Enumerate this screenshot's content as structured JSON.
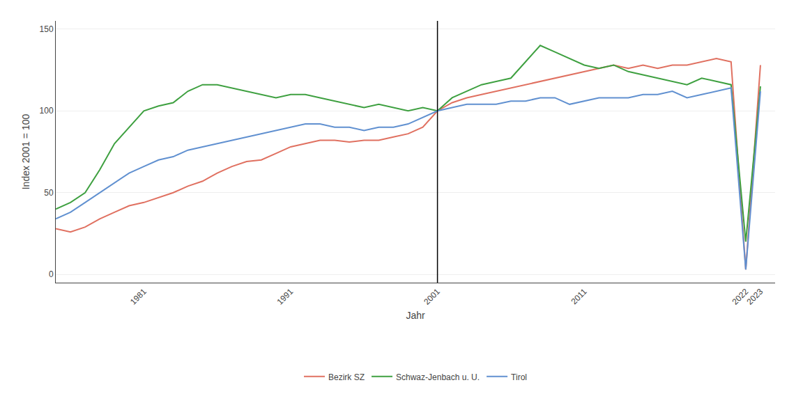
{
  "chart_data": {
    "type": "line",
    "xlabel": "Jahr",
    "ylabel": "Index 2001 = 100",
    "x": [
      1975,
      1976,
      1977,
      1978,
      1979,
      1980,
      1981,
      1982,
      1983,
      1984,
      1985,
      1986,
      1987,
      1988,
      1989,
      1990,
      1991,
      1992,
      1993,
      1994,
      1995,
      1996,
      1997,
      1998,
      1999,
      2000,
      2001,
      2002,
      2003,
      2004,
      2005,
      2006,
      2007,
      2008,
      2009,
      2010,
      2011,
      2012,
      2013,
      2014,
      2015,
      2016,
      2017,
      2018,
      2019,
      2020,
      2021,
      2022,
      2023
    ],
    "series": [
      {
        "name": "Bezirk SZ",
        "color": "#E07060",
        "values": [
          28,
          26,
          29,
          34,
          38,
          42,
          44,
          47,
          50,
          54,
          57,
          62,
          66,
          69,
          70,
          74,
          78,
          80,
          82,
          82,
          81,
          82,
          82,
          84,
          86,
          90,
          100,
          105,
          108,
          110,
          112,
          114,
          116,
          118,
          120,
          122,
          124,
          126,
          128,
          126,
          128,
          126,
          128,
          128,
          130,
          132,
          130,
          3,
          128
        ]
      },
      {
        "name": "Schwaz-Jenbach u. U.",
        "color": "#3EA040",
        "values": [
          40,
          44,
          50,
          64,
          80,
          90,
          100,
          103,
          105,
          112,
          116,
          116,
          114,
          112,
          110,
          108,
          110,
          110,
          108,
          106,
          104,
          102,
          104,
          102,
          100,
          102,
          100,
          108,
          112,
          116,
          118,
          120,
          130,
          140,
          136,
          132,
          128,
          126,
          128,
          124,
          122,
          120,
          118,
          116,
          120,
          118,
          116,
          20,
          115
        ]
      },
      {
        "name": "Tirol",
        "color": "#6090D0",
        "values": [
          34,
          38,
          44,
          50,
          56,
          62,
          66,
          70,
          72,
          76,
          78,
          80,
          82,
          84,
          86,
          88,
          90,
          92,
          92,
          90,
          90,
          88,
          90,
          90,
          92,
          96,
          100,
          102,
          104,
          104,
          104,
          106,
          106,
          108,
          108,
          104,
          106,
          108,
          108,
          108,
          110,
          110,
          112,
          108,
          110,
          112,
          114,
          3,
          112
        ]
      }
    ],
    "xlim": [
      1975,
      2024
    ],
    "ylim": [
      -5,
      155
    ],
    "xticks": [
      1981,
      1991,
      2001,
      2011,
      2022,
      2023
    ],
    "yticks": [
      0,
      50,
      100,
      150
    ],
    "vline_x": 2001,
    "grid": "y",
    "legend": "bottom"
  }
}
